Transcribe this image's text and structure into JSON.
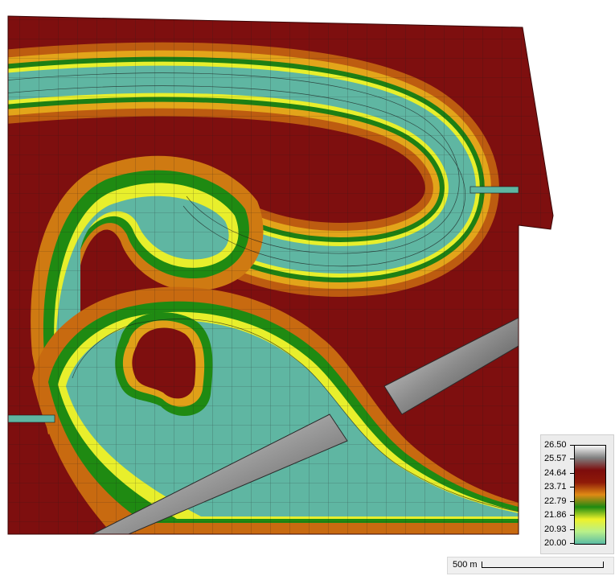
{
  "legend": {
    "labels": [
      "26.50",
      "25.57",
      "24.64",
      "23.71",
      "22.79",
      "21.86",
      "20.93",
      "20.00"
    ],
    "colors": [
      "#f7f7f7",
      "#7f7f7f",
      "#7d0c0c",
      "#8f1a08",
      "#e08a14",
      "#1f8a12",
      "#eef22a",
      "#b8f08a",
      "#5cbca4"
    ]
  },
  "scalebar": {
    "label": "500 m"
  },
  "palette": {
    "terrain": "#7e0f0f",
    "channel_fill": "#5fb6a2",
    "ridge_light": "#d2d2d2",
    "ridge_dark": "#555555",
    "mesh_line": "#1a1a1a"
  }
}
